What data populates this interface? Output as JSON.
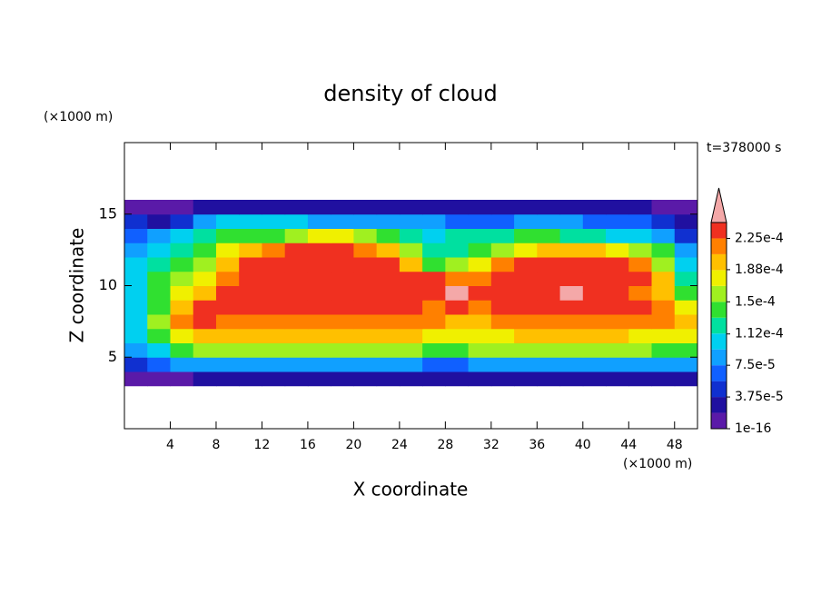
{
  "chart_data": {
    "type": "contour",
    "title": "density of cloud",
    "x_label": "X coordinate",
    "y_label": "Z coordinate",
    "x_unit": "(×1000 m)",
    "y_unit": "(×1000 m)",
    "annotation": "t=378000 s",
    "xlim": [
      0,
      50
    ],
    "ylim": [
      0,
      20
    ],
    "xticks": [
      4,
      8,
      12,
      16,
      20,
      24,
      28,
      32,
      36,
      40,
      44,
      48
    ],
    "yticks": [
      5,
      10,
      15
    ],
    "x": [
      1,
      3,
      5,
      7,
      9,
      11,
      13,
      15,
      17,
      19,
      21,
      23,
      25,
      27,
      29,
      31,
      33,
      35,
      37,
      39,
      41,
      43,
      45,
      47,
      49
    ],
    "z": [
      3.5,
      4.5,
      5.5,
      6.5,
      7.5,
      8.5,
      9.5,
      10.5,
      11.5,
      12.5,
      13.5,
      14.5,
      15.5
    ],
    "values": [
      [
        9.4e-06,
        9.4e-06,
        9.4e-06,
        2.8e-05,
        2.8e-05,
        2.8e-05,
        2.8e-05,
        2.8e-05,
        2.8e-05,
        2.8e-05,
        2.8e-05,
        2.8e-05,
        2.8e-05,
        2.8e-05,
        2.8e-05,
        2.8e-05,
        2.8e-05,
        2.8e-05,
        2.8e-05,
        2.8e-05,
        2.8e-05,
        2.8e-05,
        2.8e-05,
        2.8e-05,
        2.8e-05
      ],
      [
        4.7e-05,
        6.6e-05,
        8.4e-05,
        8.4e-05,
        8.4e-05,
        8.4e-05,
        8.4e-05,
        8.4e-05,
        8.4e-05,
        8.4e-05,
        8.4e-05,
        8.4e-05,
        8.4e-05,
        6.6e-05,
        6.6e-05,
        8.4e-05,
        8.4e-05,
        8.4e-05,
        8.4e-05,
        8.4e-05,
        8.4e-05,
        8.4e-05,
        8.4e-05,
        8.4e-05,
        8.4e-05
      ],
      [
        8.4e-05,
        0.000103,
        0.000141,
        0.000159,
        0.000159,
        0.000159,
        0.000159,
        0.000159,
        0.000159,
        0.000159,
        0.000159,
        0.000159,
        0.000159,
        0.000141,
        0.000141,
        0.000159,
        0.000159,
        0.000159,
        0.000159,
        0.000159,
        0.000159,
        0.000159,
        0.000159,
        0.000141,
        0.000141
      ],
      [
        0.000103,
        0.000141,
        0.000178,
        0.000197,
        0.000197,
        0.000197,
        0.000197,
        0.000197,
        0.000197,
        0.000197,
        0.000197,
        0.000197,
        0.000197,
        0.000178,
        0.000178,
        0.000178,
        0.000178,
        0.000197,
        0.000197,
        0.000197,
        0.000197,
        0.000197,
        0.000178,
        0.000178,
        0.000178
      ],
      [
        0.000103,
        0.000159,
        0.000216,
        0.000234,
        0.000216,
        0.000216,
        0.000216,
        0.000216,
        0.000216,
        0.000216,
        0.000216,
        0.000216,
        0.000216,
        0.000216,
        0.000197,
        0.000197,
        0.000216,
        0.000216,
        0.000216,
        0.000216,
        0.000216,
        0.000216,
        0.000216,
        0.000216,
        0.000197
      ],
      [
        0.000103,
        0.000141,
        0.000197,
        0.000234,
        0.000234,
        0.000234,
        0.000234,
        0.000234,
        0.000234,
        0.000234,
        0.000234,
        0.000234,
        0.000234,
        0.000216,
        0.000234,
        0.000216,
        0.000234,
        0.000234,
        0.000234,
        0.000234,
        0.000234,
        0.000234,
        0.000234,
        0.000216,
        0.000178
      ],
      [
        0.000103,
        0.000141,
        0.000178,
        0.000197,
        0.000234,
        0.000234,
        0.000234,
        0.000234,
        0.000234,
        0.000234,
        0.000234,
        0.000234,
        0.000234,
        0.000234,
        0.00025,
        0.000234,
        0.000234,
        0.000234,
        0.000234,
        0.00025,
        0.000234,
        0.000234,
        0.000216,
        0.000197,
        0.000141
      ],
      [
        0.000103,
        0.000141,
        0.000159,
        0.000178,
        0.000216,
        0.000234,
        0.000234,
        0.000234,
        0.000234,
        0.000234,
        0.000234,
        0.000234,
        0.000234,
        0.000234,
        0.000216,
        0.000216,
        0.000234,
        0.000234,
        0.000234,
        0.000234,
        0.000234,
        0.000234,
        0.000234,
        0.000197,
        0.000122
      ],
      [
        0.000103,
        0.000122,
        0.000141,
        0.000159,
        0.000197,
        0.000234,
        0.000234,
        0.000234,
        0.000234,
        0.000234,
        0.000234,
        0.000234,
        0.000197,
        0.000141,
        0.000159,
        0.000178,
        0.000216,
        0.000234,
        0.000234,
        0.000234,
        0.000234,
        0.000234,
        0.000216,
        0.000159,
        0.000103
      ],
      [
        8.4e-05,
        0.000103,
        0.000122,
        0.000141,
        0.000178,
        0.000197,
        0.000216,
        0.000234,
        0.000234,
        0.000234,
        0.000216,
        0.000197,
        0.000159,
        0.000122,
        0.000122,
        0.000141,
        0.000159,
        0.000178,
        0.000197,
        0.000197,
        0.000197,
        0.000178,
        0.000159,
        0.000141,
        8.4e-05
      ],
      [
        6.6e-05,
        8.4e-05,
        0.000103,
        0.000122,
        0.000141,
        0.000141,
        0.000141,
        0.000159,
        0.000178,
        0.000178,
        0.000159,
        0.000141,
        0.000122,
        0.000103,
        0.000122,
        0.000122,
        0.000122,
        0.000141,
        0.000141,
        0.000122,
        0.000122,
        0.000103,
        0.000103,
        8.4e-05,
        4.7e-05
      ],
      [
        4.7e-05,
        2.8e-05,
        4.7e-05,
        8.4e-05,
        0.000103,
        0.000103,
        0.000103,
        0.000103,
        8.4e-05,
        8.4e-05,
        8.4e-05,
        8.4e-05,
        8.4e-05,
        8.4e-05,
        6.6e-05,
        6.6e-05,
        6.6e-05,
        8.4e-05,
        8.4e-05,
        8.4e-05,
        6.6e-05,
        6.6e-05,
        6.6e-05,
        4.7e-05,
        2.8e-05
      ],
      [
        9.4e-06,
        9.4e-06,
        9.4e-06,
        2.8e-05,
        2.8e-05,
        2.8e-05,
        2.8e-05,
        2.8e-05,
        2.8e-05,
        2.8e-05,
        2.8e-05,
        2.8e-05,
        2.8e-05,
        2.8e-05,
        2.8e-05,
        2.8e-05,
        2.8e-05,
        2.8e-05,
        2.8e-05,
        2.8e-05,
        2.8e-05,
        2.8e-05,
        2.8e-05,
        9.4e-06,
        9.4e-06
      ]
    ],
    "levels": [
      1e-16,
      1.875e-05,
      3.75e-05,
      5.625e-05,
      7.5e-05,
      9.375e-05,
      0.0001125,
      0.00013125,
      0.00015,
      0.00016875,
      0.0001875,
      0.00020625,
      0.000225,
      0.00024375
    ],
    "colors": [
      "#5a1aa8",
      "#2010a0",
      "#1030d0",
      "#1060ff",
      "#10a0ff",
      "#00d0f0",
      "#00e0a0",
      "#30e030",
      "#a0f020",
      "#f0f000",
      "#ffc000",
      "#ff8000",
      "#f03020"
    ],
    "extend_color": "#f4a8a8",
    "colorbar_ticks": [
      {
        "value": 1e-16,
        "label": "1e-16"
      },
      {
        "value": 3.75e-05,
        "label": "3.75e-5"
      },
      {
        "value": 7.5e-05,
        "label": "7.5e-5"
      },
      {
        "value": 0.000112,
        "label": "1.12e-4"
      },
      {
        "value": 0.00015,
        "label": "1.5e-4"
      },
      {
        "value": 0.000188,
        "label": "1.88e-4"
      },
      {
        "value": 0.000225,
        "label": "2.25e-4"
      }
    ]
  }
}
